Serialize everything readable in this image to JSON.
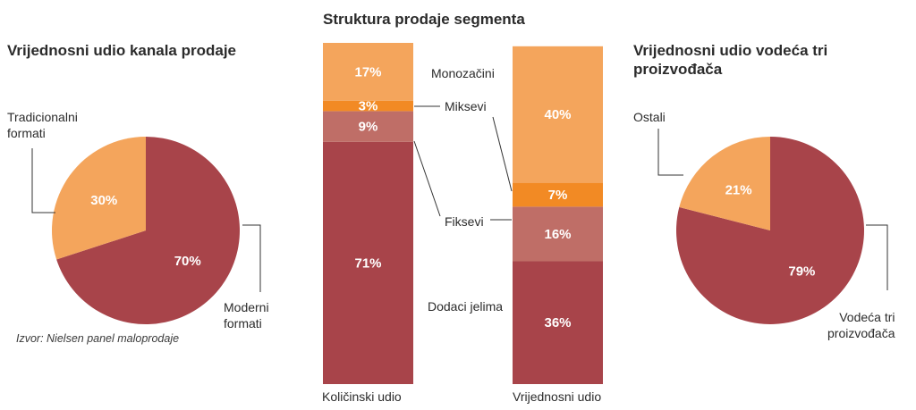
{
  "colors": {
    "maroon": "#a8444a",
    "orange_light": "#f4a55c",
    "orange_bright": "#f28a24",
    "rose": "#bf6e67"
  },
  "chart_data": [
    {
      "type": "pie",
      "title": "Vrijednosni udio kanala prodaje",
      "slices": [
        {
          "label": "Moderni formati",
          "value": 70,
          "display": "70%",
          "color": "#a8444a"
        },
        {
          "label": "Tradicionalni formati",
          "value": 30,
          "display": "30%",
          "color": "#f4a55c"
        }
      ],
      "source": "Izvor: Nielsen panel maloprodaje"
    },
    {
      "type": "bar",
      "stacked": true,
      "title": "Struktura prodaje segmenta",
      "categories": [
        "Količinski udio",
        "Vrijednosni udio"
      ],
      "series": [
        {
          "name": "Dodaci jelima",
          "values": [
            71,
            36
          ],
          "display": [
            "71%",
            "36%"
          ],
          "color": "#a8444a"
        },
        {
          "name": "Fiksevi",
          "values": [
            9,
            16
          ],
          "display": [
            "9%",
            "16%"
          ],
          "color": "#bf6e67"
        },
        {
          "name": "Miksevi",
          "values": [
            3,
            7
          ],
          "display": [
            "3%",
            "7%"
          ],
          "color": "#f28a24"
        },
        {
          "name": "Monozačini",
          "values": [
            17,
            40
          ],
          "display": [
            "17%",
            "40%"
          ],
          "color": "#f4a55c"
        }
      ],
      "ylim": [
        0,
        100
      ]
    },
    {
      "type": "pie",
      "title": "Vrijednosni udio vodeća tri proizvođača",
      "slices": [
        {
          "label": "Vodeća tri proizvođača",
          "value": 79,
          "display": "79%",
          "color": "#a8444a"
        },
        {
          "label": "Ostali",
          "value": 21,
          "display": "21%",
          "color": "#f4a55c"
        }
      ]
    }
  ],
  "labels": {
    "pie1_title": "Vrijednosni udio kanala prodaje",
    "pie1_trad_line1": "Tradicionalni",
    "pie1_trad_line2": "formati",
    "pie1_mod_line1": "Moderni",
    "pie1_mod_line2": "formati",
    "source": "Izvor: Nielsen panel maloprodaje",
    "bars_title": "Struktura prodaje segmenta",
    "bar1_label": "Količinski udio",
    "bar2_label": "Vrijednosni udio",
    "legend_mono": "Monozačini",
    "legend_miks": "Miksevi",
    "legend_fiks": "Fiksevi",
    "legend_dodaci": "Dodaci jelima",
    "pie2_title_line1": "Vrijednosni udio vodeća tri",
    "pie2_title_line2": "proizvođača",
    "pie2_ostali": "Ostali",
    "pie2_vod_line1": "Vodeća tri",
    "pie2_vod_line2": "proizvođača"
  }
}
